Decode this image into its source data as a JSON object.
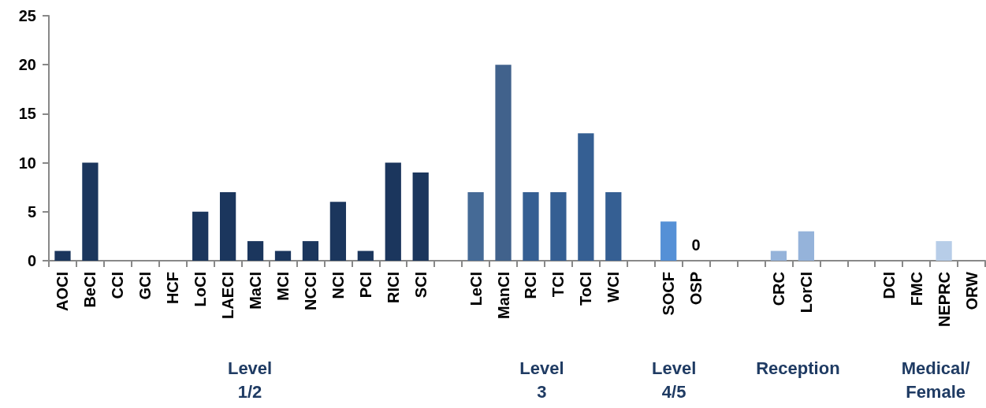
{
  "chart_data": {
    "type": "bar",
    "categories": [
      "AOCI",
      "BeCI",
      "CCI",
      "GCI",
      "HCF",
      "LoCI",
      "LAECI",
      "MaCI",
      "MCI",
      "NCCI",
      "NCI",
      "PCI",
      "RICI",
      "SCI",
      null,
      "LeCI",
      "ManCI",
      "RCI",
      "TCI",
      "ToCI",
      "WCI",
      null,
      "SOCF",
      "OSP",
      null,
      null,
      "CRC",
      "LorCI",
      null,
      null,
      "DCI",
      "FMC",
      "NEPRC",
      "ORW"
    ],
    "values": [
      1,
      10,
      0,
      0,
      0,
      5,
      7,
      2,
      1,
      2,
      6,
      1,
      10,
      9,
      null,
      7,
      20,
      7,
      7,
      13,
      7,
      null,
      4,
      0,
      null,
      null,
      1,
      3,
      null,
      null,
      0,
      0,
      2,
      0
    ],
    "colors": [
      "#1b365d",
      "#1b365d",
      "#1b365d",
      "#1b365d",
      "#1b365d",
      "#1b365d",
      "#1b365d",
      "#1b365d",
      "#1b365d",
      "#1b365d",
      "#1b365d",
      "#1b365d",
      "#1b365d",
      "#1b365d",
      null,
      "#456a96",
      "#41628c",
      "#355f93",
      "#355f93",
      "#355f93",
      "#355f93",
      null,
      "#5590d6",
      "#5590d6",
      null,
      null,
      "#95b3da",
      "#95b3da",
      null,
      null,
      "#b7cde8",
      "#b7cde8",
      "#b7cde8",
      "#b7cde8"
    ],
    "value_labels": [
      null,
      null,
      null,
      null,
      null,
      null,
      null,
      null,
      null,
      null,
      null,
      null,
      null,
      null,
      null,
      null,
      null,
      null,
      null,
      null,
      null,
      null,
      null,
      "0",
      null,
      null,
      null,
      null,
      null,
      null,
      null,
      null,
      null,
      null
    ],
    "ylim": [
      0,
      25
    ],
    "yticks": [
      0,
      5,
      10,
      15,
      20,
      25
    ],
    "grid": false,
    "annotations": [
      "Level 1/2",
      "Level 3",
      "Level 4/5",
      "Reception",
      "Medical/ Female"
    ]
  }
}
